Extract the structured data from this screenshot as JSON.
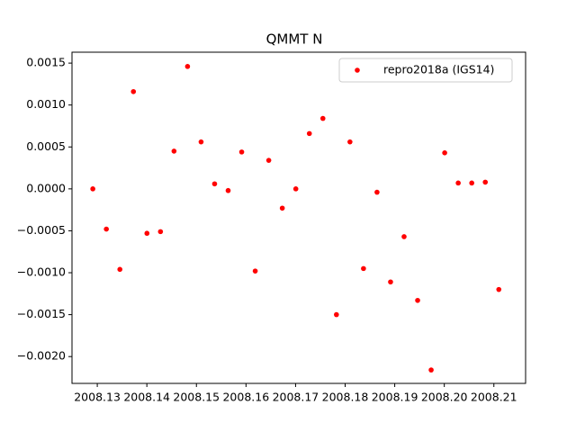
{
  "chart_data": {
    "type": "scatter",
    "title": "QMMT N",
    "x": [
      2008.1291,
      2008.13183,
      2008.13456,
      2008.13729,
      2008.14002,
      2008.14275,
      2008.14548,
      2008.14821,
      2008.15094,
      2008.15367,
      2008.1564,
      2008.15913,
      2008.16186,
      2008.16459,
      2008.16732,
      2008.17005,
      2008.17278,
      2008.17551,
      2008.17824,
      2008.18097,
      2008.1837,
      2008.18643,
      2008.18916,
      2008.19189,
      2008.19462,
      2008.19735,
      2008.20008,
      2008.20281,
      2008.20554,
      2008.20827,
      2008.211
    ],
    "series": [
      {
        "name": "repro2018a (IGS14)",
        "color": "#ff0000",
        "values": [
          0.0,
          -0.00048,
          -0.00096,
          0.00116,
          -0.00053,
          -0.00051,
          0.00045,
          0.00146,
          0.00056,
          6e-05,
          -2e-05,
          0.00044,
          -0.00098,
          0.00034,
          -0.00023,
          0.0,
          0.00066,
          0.00084,
          -0.0015,
          0.00056,
          -0.00095,
          -4e-05,
          -0.00111,
          -0.00057,
          -0.00133,
          -0.00216,
          0.00043,
          7e-05,
          7e-05,
          8e-05,
          -0.0012
        ]
      }
    ],
    "xlim": [
      2008.1249,
      2008.2164
    ],
    "ylim": [
      -0.00232,
      0.00163
    ],
    "xticks": [
      2008.13,
      2008.14,
      2008.15,
      2008.16,
      2008.17,
      2008.18,
      2008.19,
      {
        "value": 2008.2,
        "label": "2008.20"
      },
      2008.21
    ],
    "yticks": [
      0.0015,
      {
        "value": 0.001,
        "label": "0.0010"
      },
      0.0005,
      {
        "value": 0,
        "label": "0.0000"
      },
      {
        "value": -0.0005,
        "label": "−0.0005"
      },
      {
        "value": -0.001,
        "label": "−0.0010"
      },
      {
        "value": -0.0015,
        "label": "−0.0015"
      },
      {
        "value": -0.002,
        "label": "−0.0020"
      }
    ],
    "legend": "upper right",
    "grid": false
  }
}
